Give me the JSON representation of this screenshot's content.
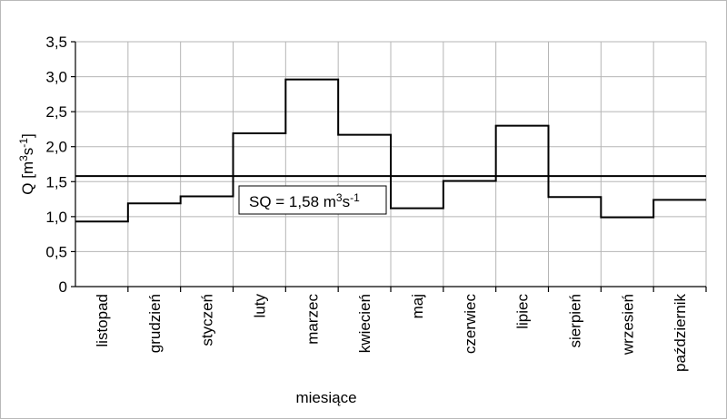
{
  "chart_data": {
    "type": "line",
    "style": "step",
    "categories": [
      "listopad",
      "grudzień",
      "styczeń",
      "luty",
      "marzec",
      "kwiecień",
      "maj",
      "czerwiec",
      "lipiec",
      "sierpień",
      "wrzesień",
      "październik"
    ],
    "values": [
      0.93,
      1.19,
      1.29,
      2.19,
      2.96,
      2.17,
      1.12,
      1.51,
      2.3,
      1.28,
      0.99,
      1.24
    ],
    "reference_line": {
      "value": 1.58,
      "label_prefix": "SQ = 1,58 m",
      "label_sup1": "3",
      "label_mid": "s",
      "label_sup2": "-1"
    },
    "ylabel": {
      "prefix": "Q [m",
      "sup1": "3",
      "mid": "s",
      "sup2": "-1",
      "suffix": "]"
    },
    "xlabel": "miesiące",
    "ylim": [
      0,
      3.5
    ],
    "yticks": [
      "0",
      "0,5",
      "1,0",
      "1,5",
      "2,0",
      "2,5",
      "3,0",
      "3,5"
    ],
    "grid": true
  }
}
